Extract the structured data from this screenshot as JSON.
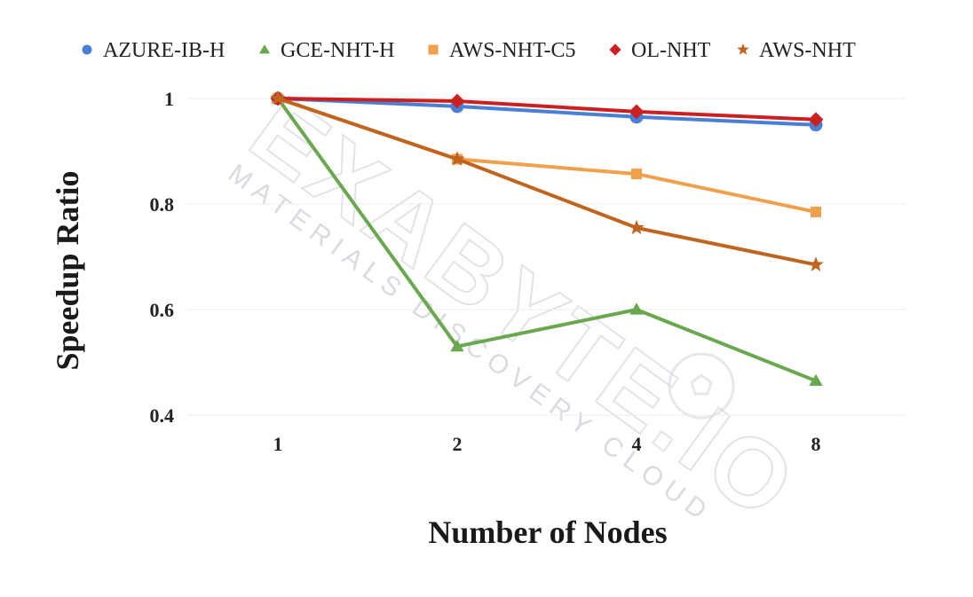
{
  "chart_data": {
    "type": "line",
    "title": "",
    "xlabel": "Number of Nodes",
    "ylabel": "Speedup Ratio",
    "categories": [
      "1",
      "2",
      "4",
      "8"
    ],
    "ylim": [
      0.4,
      1.0
    ],
    "yticks": [
      "0.4",
      "0.6",
      "0.8",
      "1"
    ],
    "grid": true,
    "legend_position": "top",
    "series": [
      {
        "name": "AZURE-IB-H",
        "color": "#4a7fd6",
        "marker": "circle",
        "values": [
          1.0,
          0.985,
          0.965,
          0.95
        ]
      },
      {
        "name": "GCE-NHT-H",
        "color": "#6aa84f",
        "marker": "triangle",
        "values": [
          1.0,
          0.53,
          0.6,
          0.465
        ]
      },
      {
        "name": "AWS-NHT-C5",
        "color": "#f0a04b",
        "marker": "square",
        "values": [
          1.0,
          0.885,
          0.857,
          0.785
        ]
      },
      {
        "name": "OL-NHT",
        "color": "#cc1f1f",
        "marker": "diamond",
        "values": [
          1.0,
          0.995,
          0.975,
          0.96
        ]
      },
      {
        "name": "AWS-NHT",
        "color": "#c0651f",
        "marker": "star",
        "values": [
          1.0,
          0.885,
          0.755,
          0.685
        ]
      }
    ]
  },
  "watermark": {
    "brand": "EXABYTE.IO",
    "tagline": "MATERIALS DISCOVERY CLOUD",
    "icon": "soccer-ball-icon"
  }
}
